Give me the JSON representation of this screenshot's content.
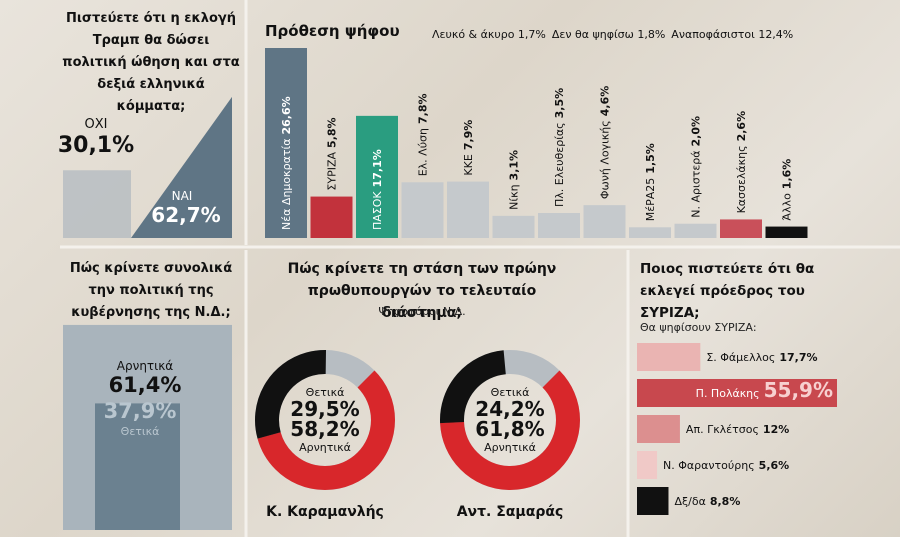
{
  "chart_data": [
    {
      "type": "area",
      "title": "Πιστεύετε ότι η εκλογή Τραμπ θα δώσει πολιτική ώθηση και στα δεξιά ελληνικά κόμματα;",
      "categories": [
        "ΟΧΙ",
        "ΝΑΙ"
      ],
      "values": [
        30.1,
        62.7
      ],
      "value_labels": [
        "30,1%",
        "62,7%"
      ],
      "colors": [
        "#b7bdc2",
        "#5f7585"
      ]
    },
    {
      "type": "bar",
      "title": "Πρόθεση ψήφου",
      "annotations": [
        "Λευκό & άκυρο 1,7%",
        "Δεν θα ψηφίσω 1,8%",
        "Αναποφάσιστοι 12,4%"
      ],
      "categories": [
        "Νέα Δημοκρατία",
        "ΣΥΡΙΖΑ",
        "ΠΑΣΟΚ",
        "Ελ. Λύση",
        "ΚΚΕ",
        "Νίκη",
        "Πλ. Ελευθερίας",
        "Φωνή Λογικής",
        "ΜέΡΑ25",
        "Ν. Αριστερά",
        "Κασσελάκης",
        "Άλλο"
      ],
      "values": [
        26.6,
        5.8,
        17.1,
        7.8,
        7.9,
        3.1,
        3.5,
        4.6,
        1.5,
        2.0,
        2.6,
        1.6
      ],
      "value_labels": [
        "26,6%",
        "5,8%",
        "17,1%",
        "7,8%",
        "7,9%",
        "3,1%",
        "3,5%",
        "4,6%",
        "1,5%",
        "2,0%",
        "2,6%",
        "1,6%"
      ],
      "colors": [
        "#5f7585",
        "#c2323c",
        "#2a9d80",
        "#c5c9cc",
        "#c5c9cc",
        "#c5c9cc",
        "#c5c9cc",
        "#c5c9cc",
        "#c5c9cc",
        "#c5c9cc",
        "#c9505a",
        "#111111"
      ]
    },
    {
      "type": "overlap",
      "title": "Πώς κρίνετε συνολικά την πολιτική της κυβέρνησης της Ν.Δ.;",
      "categories": [
        "Αρνητικά",
        "Θετικά"
      ],
      "values": [
        61.4,
        37.9
      ],
      "value_labels": [
        "61,4%",
        "37,9%"
      ],
      "colors": [
        "#a9b4bc",
        "#6b8190"
      ]
    },
    {
      "type": "donut",
      "title": "Πώς κρίνετε τη στάση των πρώην πρωθυπουργών το τελευταίο διάστημα;",
      "subtitle": "Ψηφοφόροι Ν.Δ.",
      "categories": [
        "Κ. Καραμανλής",
        "Αντ. Σαμαράς"
      ],
      "series": [
        {
          "name": "Θετικά",
          "color": "#111111",
          "values": [
            29.5,
            24.2
          ],
          "value_labels": [
            "29,5%",
            "24,2%"
          ]
        },
        {
          "name": "Αρνητικά",
          "color": "#d8272b",
          "values": [
            58.2,
            61.8
          ],
          "value_labels": [
            "58,2%",
            "61,8%"
          ]
        }
      ]
    },
    {
      "type": "hbar",
      "title": "Ποιος πιστεύετε ότι θα εκλεγεί πρόεδρος του ΣΥΡΙΖΑ;",
      "subtitle": "Θα ψηφίσουν ΣΥΡΙΖΑ:",
      "categories": [
        "Σ. Φάμελλος",
        "Π. Πολάκης",
        "Απ. Γκλέτσος",
        "Ν. Φαραντούρης",
        "Δξ/δα"
      ],
      "values": [
        17.7,
        55.9,
        12,
        5.6,
        8.8
      ],
      "value_labels": [
        "17,7%",
        "55,9%",
        "12%",
        "5,6%",
        "8,8%"
      ],
      "colors": [
        "#eab4b2",
        "#c8484e",
        "#dc8f8f",
        "#f0c9c7",
        "#111111"
      ]
    }
  ]
}
